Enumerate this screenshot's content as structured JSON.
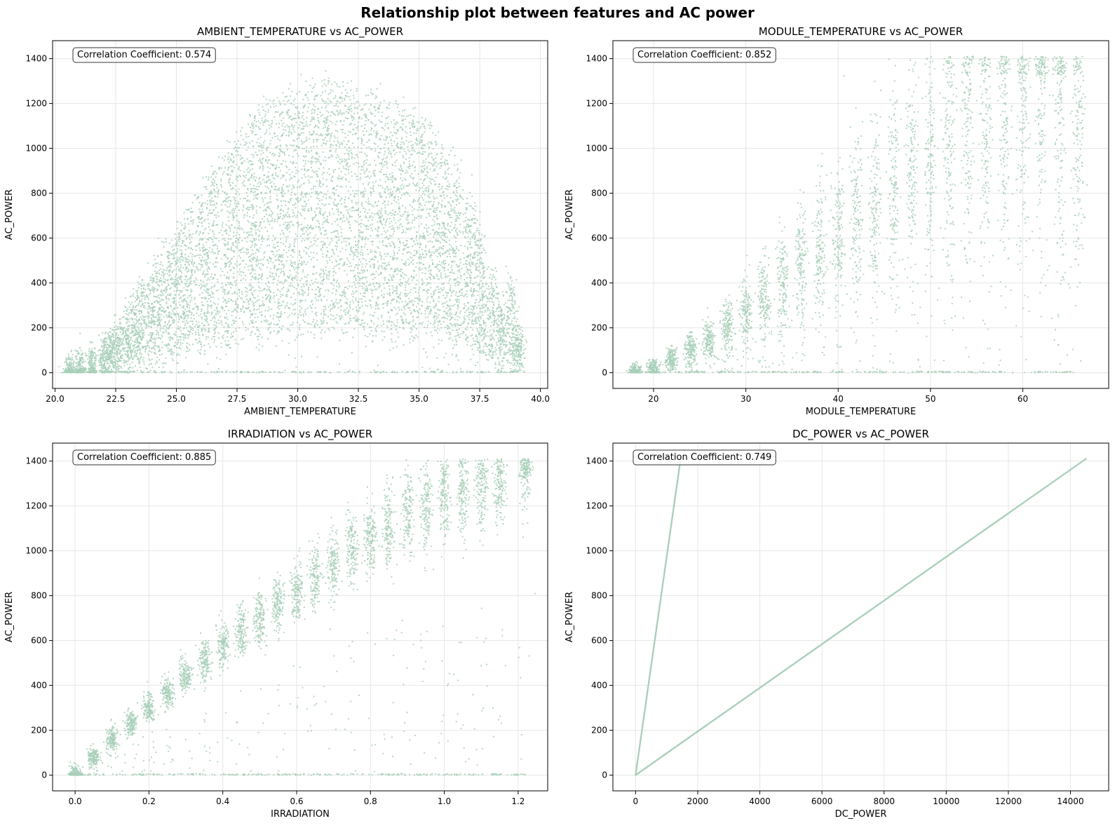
{
  "suptitle": "Relationship plot between features and AC power",
  "chart_data": [
    {
      "type": "scatter",
      "title": "AMBIENT_TEMPERATURE vs AC_POWER",
      "xlabel": "AMBIENT_TEMPERATURE",
      "ylabel": "AC_POWER",
      "annotation": "Correlation Coefficient: 0.574",
      "xlim": [
        19.9,
        40.3
      ],
      "ylim": [
        -70,
        1480
      ],
      "xticks": [
        20.0,
        22.5,
        25.0,
        27.5,
        30.0,
        32.5,
        35.0,
        37.5,
        40.0
      ],
      "xtick_labels": [
        "20.0",
        "22.5",
        "25.0",
        "27.5",
        "30.0",
        "32.5",
        "35.0",
        "37.5",
        "40.0"
      ],
      "yticks": [
        0,
        200,
        400,
        600,
        800,
        1000,
        1200,
        1400
      ],
      "ytick_labels": [
        "0",
        "200",
        "400",
        "600",
        "800",
        "1000",
        "1200",
        "1400"
      ],
      "grid": true,
      "color": "#a8cfb8",
      "pattern": "Dense cloud: AC_POWER rises from 0 at ~21 to ~1200–1400 between 27 and 37; many points along 0 from 20.5 to 39",
      "x": [
        20.6,
        21.0,
        21.5,
        22.0,
        22.3,
        22.6,
        23.0,
        23.3,
        23.6,
        24.0,
        24.3,
        24.7,
        25.0,
        25.3,
        25.6,
        26.0,
        26.3,
        26.6,
        27.0,
        27.3,
        27.6,
        28.0,
        28.2,
        28.5,
        28.8,
        29.1,
        29.4,
        29.7,
        30.0,
        30.3,
        30.6,
        30.9,
        31.2,
        31.5,
        31.8,
        32.1,
        32.4,
        32.7,
        33.0,
        33.3,
        33.6,
        33.9,
        34.2,
        34.5,
        34.8,
        35.1,
        35.4,
        35.7,
        36.0,
        36.3,
        36.6,
        37.0,
        37.3,
        37.6,
        38.0,
        38.4,
        38.8,
        39.1
      ],
      "y": [
        10,
        30,
        60,
        120,
        160,
        200,
        260,
        320,
        380,
        440,
        500,
        560,
        620,
        680,
        740,
        800,
        860,
        900,
        950,
        1000,
        1050,
        1100,
        1150,
        1180,
        1200,
        1220,
        1240,
        1250,
        1250,
        1260,
        1260,
        1270,
        1270,
        1260,
        1260,
        1250,
        1240,
        1230,
        1220,
        1210,
        1200,
        1190,
        1180,
        1170,
        1150,
        1130,
        1100,
        1050,
        1000,
        950,
        900,
        800,
        700,
        600,
        450,
        300,
        400,
        180
      ]
    },
    {
      "type": "scatter",
      "title": "MODULE_TEMPERATURE vs AC_POWER",
      "xlabel": "MODULE_TEMPERATURE",
      "ylabel": "AC_POWER",
      "annotation": "Correlation Coefficient: 0.852",
      "xlim": [
        15.6,
        69.3
      ],
      "ylim": [
        -70,
        1480
      ],
      "xticks": [
        20,
        30,
        40,
        50,
        60
      ],
      "xtick_labels": [
        "20",
        "30",
        "40",
        "50",
        "60"
      ],
      "yticks": [
        0,
        200,
        400,
        600,
        800,
        1000,
        1200,
        1400
      ],
      "ytick_labels": [
        "0",
        "200",
        "400",
        "600",
        "800",
        "1000",
        "1200",
        "1400"
      ],
      "grid": true,
      "color": "#a8cfb8",
      "pattern": "Positive trend: AC_POWER increases roughly linearly from 0 at 18 to ~1200 at 60; many points along 0 from 18 to 64",
      "x": [
        18,
        20,
        22,
        24,
        26,
        28,
        30,
        32,
        34,
        36,
        38,
        40,
        42,
        44,
        46,
        48,
        50,
        52,
        54,
        56,
        58,
        60,
        62,
        64,
        66
      ],
      "y": [
        0,
        20,
        60,
        100,
        150,
        200,
        260,
        330,
        400,
        470,
        540,
        610,
        680,
        750,
        820,
        890,
        960,
        1020,
        1080,
        1130,
        1170,
        1200,
        1220,
        1200,
        1100
      ]
    },
    {
      "type": "scatter",
      "title": "IRRADIATION vs AC_POWER",
      "xlabel": "IRRADIATION",
      "ylabel": "AC_POWER",
      "annotation": "Correlation Coefficient: 0.885",
      "xlim": [
        -0.061,
        1.28
      ],
      "ylim": [
        -70,
        1480
      ],
      "xticks": [
        0.0,
        0.2,
        0.4,
        0.6,
        0.8,
        1.0,
        1.2
      ],
      "xtick_labels": [
        "0.0",
        "0.2",
        "0.4",
        "0.6",
        "0.8",
        "1.0",
        "1.2"
      ],
      "yticks": [
        0,
        200,
        400,
        600,
        800,
        1000,
        1200,
        1400
      ],
      "ytick_labels": [
        "0",
        "200",
        "400",
        "600",
        "800",
        "1000",
        "1200",
        "1400"
      ],
      "grid": true,
      "color": "#a8cfb8",
      "pattern": "Strong near-linear band from (0,0) to (1.0,1250); sparse outliers below band; points along 0 up to 1.1",
      "x": [
        0.0,
        0.05,
        0.1,
        0.15,
        0.2,
        0.25,
        0.3,
        0.35,
        0.4,
        0.45,
        0.5,
        0.55,
        0.6,
        0.65,
        0.7,
        0.75,
        0.8,
        0.85,
        0.9,
        0.95,
        1.0,
        1.05,
        1.1,
        1.15,
        1.22
      ],
      "y": [
        0,
        80,
        160,
        230,
        300,
        370,
        440,
        510,
        580,
        640,
        700,
        760,
        820,
        880,
        940,
        1000,
        1060,
        1110,
        1160,
        1200,
        1240,
        1260,
        1280,
        1300,
        1400
      ]
    },
    {
      "type": "scatter",
      "title": "DC_POWER vs AC_POWER",
      "xlabel": "DC_POWER",
      "ylabel": "AC_POWER",
      "annotation": "Correlation Coefficient: 0.749",
      "xlim": [
        -730,
        15230
      ],
      "ylim": [
        -70,
        1480
      ],
      "xticks": [
        0,
        2000,
        4000,
        6000,
        8000,
        10000,
        12000,
        14000
      ],
      "xtick_labels": [
        "0",
        "2000",
        "4000",
        "6000",
        "8000",
        "10000",
        "12000",
        "14000"
      ],
      "yticks": [
        0,
        200,
        400,
        600,
        800,
        1000,
        1200,
        1400
      ],
      "ytick_labels": [
        "0",
        "200",
        "400",
        "600",
        "800",
        "1000",
        "1200",
        "1400"
      ],
      "grid": true,
      "color": "#a8cfb8",
      "pattern": "Two straight lines: steep line from (0,0) to (~1450,1410) and shallow line from (0,0) to (~14500,1410)",
      "series": [
        {
          "x": [
            0,
            250,
            500,
            750,
            1000,
            1250,
            1450
          ],
          "y": [
            0,
            243,
            486,
            729,
            972,
            1215,
            1410
          ]
        },
        {
          "x": [
            0,
            2000,
            4000,
            6000,
            8000,
            10000,
            12000,
            14500
          ],
          "y": [
            0,
            195,
            389,
            584,
            778,
            973,
            1167,
            1410
          ]
        }
      ]
    }
  ]
}
